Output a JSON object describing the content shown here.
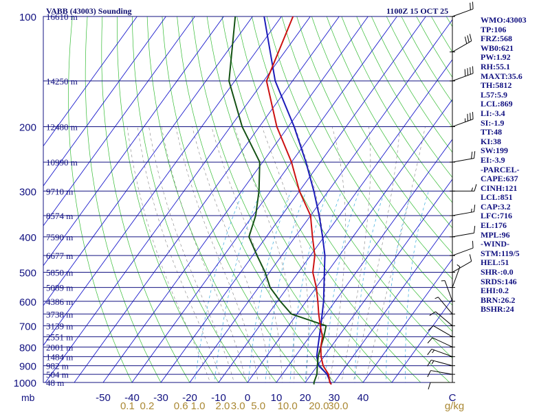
{
  "header": {
    "title": "VABB (43003) Sounding",
    "time": "1100Z 15 OCT 25"
  },
  "indices": [
    "WMO:43003",
    "TP:106",
    "FRZ:568",
    "WB0:621",
    "PW:1.92",
    "RH:55.1",
    "MAXT:35.6",
    "TH:5812",
    "L57:5.9",
    "LCL:869",
    "LI:-3.4",
    "SI:-1.9",
    "TT:48",
    "KI:38",
    "SW:199",
    "EI:-3.9",
    "-PARCEL-",
    "CAPE:637",
    "CINH:121",
    "LCL:851",
    "CAP:3.2",
    "LFC:716",
    "EL:176",
    "MPL:96",
    "-WIND-",
    "STM:119/5",
    "HEL:51",
    "SHR-:0.0",
    "SRDS:146",
    "EHI:0.2",
    "BRN:26.2",
    "BSHR:24"
  ],
  "chart_data": {
    "type": "skew-t",
    "title": "VABB (43003) Sounding",
    "pressure_unit_label": "mb",
    "pressure_ticks": [
      100,
      200,
      300,
      400,
      500,
      600,
      700,
      800,
      900,
      1000
    ],
    "temperature_ticks": [
      -50,
      -40,
      -30,
      -20,
      -10,
      0,
      10,
      20,
      30,
      40
    ],
    "temperature_unit_label": "C",
    "mixing_ratio_ticks": [
      "0.1",
      "0.2",
      "0.6",
      "1.0",
      "2.0",
      "3.0",
      "5.0",
      "10.0",
      "20.0",
      "30.0"
    ],
    "mixing_ratio_unit_label": "g/kg",
    "mandatory_levels": [
      {
        "p": 1000,
        "height": "48 m"
      },
      {
        "p": 950,
        "height": "504 m"
      },
      {
        "p": 900,
        "height": "982 m"
      },
      {
        "p": 850,
        "height": "1484 m"
      },
      {
        "p": 800,
        "height": "2001 m"
      },
      {
        "p": 750,
        "height": "2551 m"
      },
      {
        "p": 700,
        "height": "3139 m"
      },
      {
        "p": 650,
        "height": "3738 m"
      },
      {
        "p": 600,
        "height": "4386 m"
      },
      {
        "p": 550,
        "height": "5089 m"
      },
      {
        "p": 500,
        "height": "5850 m"
      },
      {
        "p": 450,
        "height": "6677 m"
      },
      {
        "p": 400,
        "height": "7590 m"
      },
      {
        "p": 350,
        "height": "8574 m"
      },
      {
        "p": 300,
        "height": "9710 m"
      },
      {
        "p": 250,
        "height": "10990 m"
      },
      {
        "p": 200,
        "height": "12480 m"
      },
      {
        "p": 150,
        "height": "14250 m"
      },
      {
        "p": 100,
        "height": "16610 m"
      }
    ],
    "temperature_profile": [
      [
        1012,
        29.5
      ],
      [
        1000,
        28.5
      ],
      [
        950,
        26
      ],
      [
        900,
        22
      ],
      [
        850,
        19
      ],
      [
        800,
        16.5
      ],
      [
        750,
        14.5
      ],
      [
        700,
        11
      ],
      [
        650,
        7.5
      ],
      [
        600,
        4
      ],
      [
        550,
        0
      ],
      [
        500,
        -5
      ],
      [
        450,
        -8.5
      ],
      [
        400,
        -14
      ],
      [
        350,
        -20
      ],
      [
        300,
        -30
      ],
      [
        250,
        -40
      ],
      [
        200,
        -54
      ],
      [
        150,
        -69
      ],
      [
        100,
        -76
      ]
    ],
    "dewpoint_profile": [
      [
        1012,
        23.5
      ],
      [
        1000,
        23
      ],
      [
        950,
        22
      ],
      [
        900,
        20
      ],
      [
        850,
        18
      ],
      [
        800,
        16.5
      ],
      [
        750,
        15
      ],
      [
        700,
        13
      ],
      [
        650,
        -2
      ],
      [
        600,
        -9
      ],
      [
        550,
        -16
      ],
      [
        500,
        -21.5
      ],
      [
        450,
        -28.5
      ],
      [
        400,
        -36
      ],
      [
        350,
        -39
      ],
      [
        300,
        -44
      ],
      [
        250,
        -51
      ],
      [
        200,
        -66
      ],
      [
        150,
        -82
      ],
      [
        100,
        -96
      ]
    ],
    "parcel_profile": [
      [
        1012,
        29.5
      ],
      [
        950,
        25.5
      ],
      [
        900,
        20.5
      ],
      [
        850,
        17.5
      ],
      [
        800,
        15.5
      ],
      [
        700,
        11.2
      ],
      [
        600,
        6
      ],
      [
        500,
        -1
      ],
      [
        450,
        -5
      ],
      [
        400,
        -10.5
      ],
      [
        350,
        -17
      ],
      [
        300,
        -25
      ],
      [
        250,
        -35
      ],
      [
        200,
        -48
      ],
      [
        150,
        -66
      ],
      [
        100,
        -86
      ]
    ],
    "wind_profile": [
      {
        "p": 1000,
        "dir": 270,
        "spd": 10
      },
      {
        "p": 950,
        "dir": 280,
        "spd": 10
      },
      {
        "p": 900,
        "dir": 285,
        "spd": 15
      },
      {
        "p": 850,
        "dir": 290,
        "spd": 15
      },
      {
        "p": 800,
        "dir": 295,
        "spd": 10
      },
      {
        "p": 750,
        "dir": 300,
        "spd": 10
      },
      {
        "p": 700,
        "dir": 310,
        "spd": 10
      },
      {
        "p": 650,
        "dir": 320,
        "spd": 5
      },
      {
        "p": 600,
        "dir": 340,
        "spd": 5
      },
      {
        "p": 550,
        "dir": 20,
        "spd": 5
      },
      {
        "p": 500,
        "dir": 60,
        "spd": 10
      },
      {
        "p": 450,
        "dir": 70,
        "spd": 10
      },
      {
        "p": 400,
        "dir": 80,
        "spd": 10
      },
      {
        "p": 350,
        "dir": 80,
        "spd": 15
      },
      {
        "p": 300,
        "dir": 90,
        "spd": 15
      },
      {
        "p": 250,
        "dir": 80,
        "spd": 20
      },
      {
        "p": 200,
        "dir": 70,
        "spd": 35
      },
      {
        "p": 150,
        "dir": 70,
        "spd": 40
      },
      {
        "p": 125,
        "dir": 60,
        "spd": 30
      },
      {
        "p": 100,
        "dir": 70,
        "spd": 20
      }
    ],
    "colors": {
      "isobar": "#101080",
      "isotherm": "#1a1acc",
      "dry_adiabat": "#33bb33",
      "moist_adiabat": "#808080",
      "mixing_ratio": "#33aadd",
      "temperature": "#cc1111",
      "dewpoint": "#145214",
      "parcel": "#1a1ab8",
      "mixing_label": "#aa8833",
      "text": "#101080"
    },
    "grid": true
  }
}
